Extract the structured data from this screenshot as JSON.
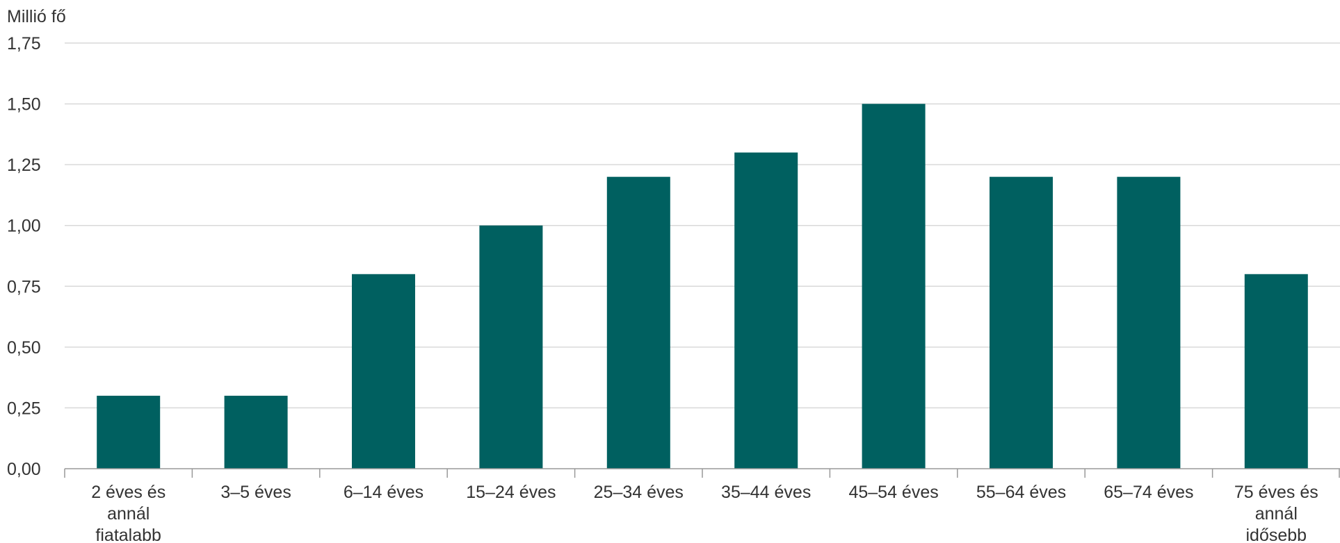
{
  "chart_data": {
    "type": "bar",
    "ylabel": "Millió fő",
    "ylim": [
      0,
      1.75
    ],
    "yticks": [
      "0,00",
      "0,25",
      "0,50",
      "0,75",
      "1,00",
      "1,25",
      "1,50",
      "1,75"
    ],
    "categories": [
      [
        "2 éves és",
        "annál",
        "fiatalabb"
      ],
      [
        "3–5 éves"
      ],
      [
        "6–14 éves"
      ],
      [
        "15–24 éves"
      ],
      [
        "25–34 éves"
      ],
      [
        "35–44 éves"
      ],
      [
        "45–54 éves"
      ],
      [
        "55–64 éves"
      ],
      [
        "65–74 éves"
      ],
      [
        "75 éves és",
        "annál",
        "idősebb"
      ]
    ],
    "values": [
      0.3,
      0.3,
      0.8,
      1.0,
      1.2,
      1.3,
      1.5,
      1.2,
      1.2,
      0.8
    ],
    "grid": true,
    "bar_color": "#006060"
  }
}
